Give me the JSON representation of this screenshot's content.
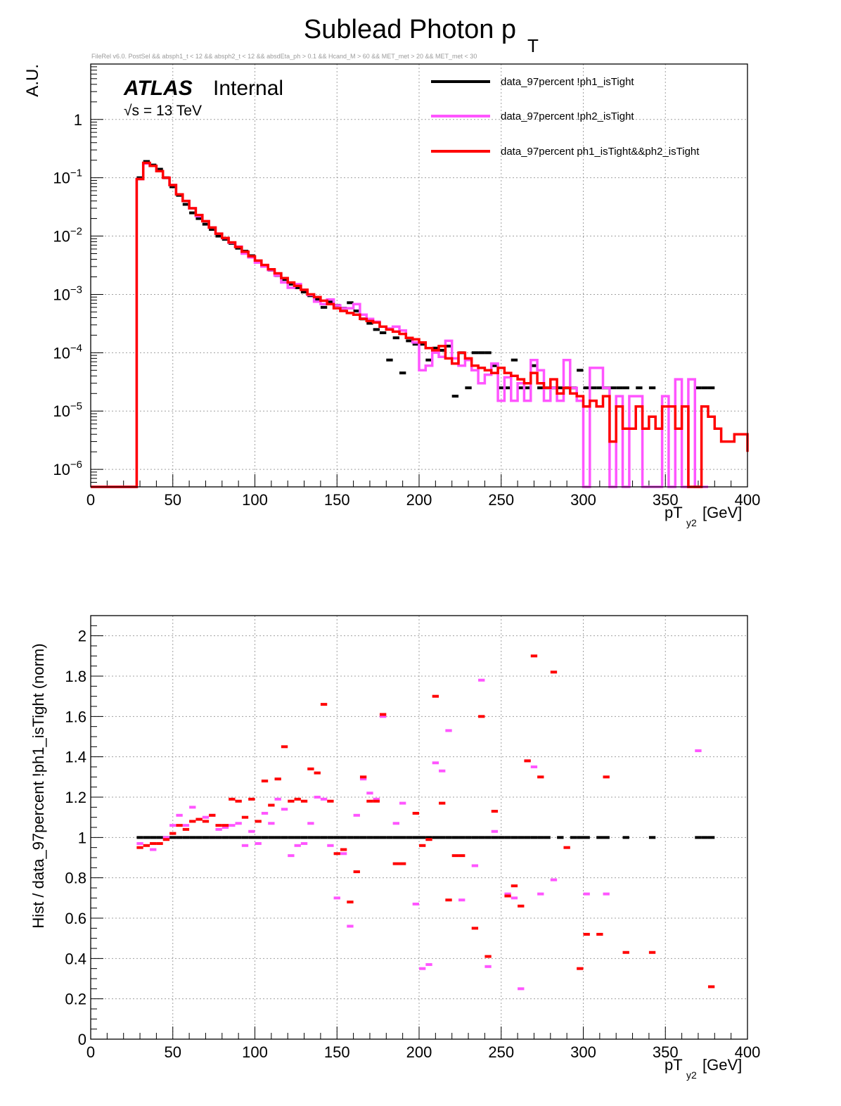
{
  "title": {
    "main": "Sublead Photon p",
    "sub": "T"
  },
  "selection_text": "FileRel v6.0. PostSel &&  absph1_t < 12 && absph2_t < 12 && absdEta_ph > 0.1 && Hcand_M > 60 && MET_met > 20 && MET_met < 30",
  "atlas": {
    "bold": "ATLAS",
    "label": "Internal",
    "energy": "√s = 13 TeV"
  },
  "colors": {
    "data": "#000000",
    "ph2": "#ff55ff",
    "tight": "#ff0000",
    "grid": "#a0a0a0",
    "frame": "#000000"
  },
  "chart_data": [
    {
      "type": "line",
      "subtype": "step-histogram",
      "scale_y": "log",
      "xlim": [
        0,
        400
      ],
      "ylim_log10": [
        -6.3,
        0.95
      ],
      "xlabel": "pT",
      "xlabel_sub": "y2",
      "xlabel_unit": "[GeV]",
      "ylabel": "A.U.",
      "grid": true,
      "legend_position": "top-right",
      "x_ticks": [
        "0",
        "50",
        "100",
        "150",
        "200",
        "250",
        "300",
        "350",
        "400"
      ],
      "y_ticks": [
        {
          "value": 1,
          "base": "1",
          "exp": ""
        },
        {
          "value": 0.1,
          "base": "10",
          "exp": "−1"
        },
        {
          "value": 0.01,
          "base": "10",
          "exp": "−2"
        },
        {
          "value": 0.001,
          "base": "10",
          "exp": "−3"
        },
        {
          "value": 0.0001,
          "base": "10",
          "exp": "−4"
        },
        {
          "value": 1e-05,
          "base": "10",
          "exp": "−5"
        },
        {
          "value": 1e-06,
          "base": "10",
          "exp": "−6"
        }
      ],
      "series": [
        {
          "name": "data_97percent  !ph1_isTight",
          "color": "#000000",
          "style": "markers",
          "x": [
            30,
            34,
            38,
            42,
            46,
            50,
            54,
            58,
            62,
            66,
            70,
            74,
            78,
            82,
            86,
            90,
            94,
            98,
            102,
            106,
            110,
            114,
            118,
            122,
            126,
            130,
            134,
            138,
            142,
            146,
            150,
            154,
            158,
            162,
            166,
            170,
            174,
            178,
            182,
            186,
            190,
            194,
            198,
            202,
            206,
            210,
            214,
            218,
            222,
            226,
            230,
            234,
            238,
            242,
            246,
            250,
            254,
            258,
            262,
            266,
            270,
            274,
            278,
            282,
            286,
            290,
            294,
            298,
            302,
            306,
            310,
            314,
            318,
            322,
            326,
            334,
            342,
            370,
            374,
            378
          ],
          "y": [
            0.1,
            0.19,
            0.165,
            0.14,
            0.1,
            0.07,
            0.05,
            0.035,
            0.025,
            0.02,
            0.016,
            0.013,
            0.01,
            0.0088,
            0.0075,
            0.0062,
            0.0055,
            0.0046,
            0.0037,
            0.0031,
            0.0026,
            0.0021,
            0.0018,
            0.0015,
            0.0013,
            0.0011,
            0.00095,
            0.00082,
            0.0006,
            0.00075,
            0.00065,
            0.00058,
            0.00072,
            0.00052,
            0.00038,
            0.00032,
            0.00025,
            0.00022,
            7.5e-05,
            0.00018,
            4.5e-05,
            0.00016,
            0.00014,
            0.00014,
            7.5e-05,
            0.00012,
            0.00011,
            0.00013,
            1.8e-05,
            0.0001,
            2.5e-05,
            0.0001,
            0.0001,
            0.0001,
            6e-05,
            2.5e-05,
            2.5e-05,
            7.5e-05,
            2.5e-05,
            2.5e-05,
            6e-05,
            2.5e-05,
            2.5e-05,
            2.5e-05,
            2.5e-05,
            2.5e-05,
            2.5e-05,
            5e-05,
            2.5e-05,
            2.5e-05,
            2.5e-05,
            2.5e-05,
            2.5e-05,
            2.5e-05,
            2.5e-05,
            2.5e-05,
            2.5e-05,
            2.5e-05,
            2.5e-05,
            2.5e-05
          ]
        },
        {
          "name": "data_97percent  !ph2_isTight",
          "color": "#ff55ff",
          "style": "step",
          "edges": [
            0,
            28,
            32,
            36,
            40,
            44,
            48,
            52,
            56,
            60,
            64,
            68,
            72,
            76,
            80,
            84,
            88,
            92,
            96,
            100,
            104,
            108,
            112,
            116,
            120,
            124,
            128,
            132,
            136,
            140,
            144,
            148,
            152,
            156,
            160,
            164,
            168,
            172,
            176,
            180,
            184,
            188,
            192,
            196,
            200,
            204,
            208,
            212,
            216,
            220,
            224,
            228,
            232,
            236,
            240,
            244,
            248,
            252,
            256,
            260,
            264,
            268,
            272,
            276,
            280,
            284,
            288,
            292,
            296,
            300,
            304,
            308,
            312,
            316,
            320,
            324,
            328,
            332,
            336,
            340,
            344,
            348,
            352,
            356,
            360,
            364,
            368,
            372,
            376,
            400
          ],
          "y": [
            0,
            0.095,
            0.175,
            0.16,
            0.13,
            0.1,
            0.075,
            0.052,
            0.04,
            0.03,
            0.022,
            0.018,
            0.014,
            0.011,
            0.0092,
            0.0077,
            0.0066,
            0.005,
            0.0043,
            0.0035,
            0.003,
            0.0026,
            0.0021,
            0.0016,
            0.0013,
            0.0015,
            0.0012,
            0.00098,
            0.00075,
            0.00068,
            0.00082,
            0.00065,
            0.00058,
            0.00058,
            0.00068,
            0.00045,
            0.00038,
            0.00034,
            0.00028,
            0.00026,
            0.00028,
            0.00024,
            0.00018,
            0.00015,
            5e-05,
            6e-05,
            0.0001,
            8.5e-05,
            0.00016,
            8e-05,
            6e-05,
            7.5e-05,
            5e-05,
            3e-05,
            4.2e-05,
            6.5e-05,
            1.5e-05,
            3.8e-05,
            1.5e-05,
            3e-05,
            1.5e-05,
            7.5e-05,
            5e-05,
            1.5e-05,
            2.5e-05,
            1.5e-05,
            7.5e-05,
            2.5e-05,
            1.5e-05,
            0,
            5.5e-05,
            5.5e-05,
            2.5e-05,
            0,
            1.8e-05,
            0,
            1.8e-05,
            1.8e-05,
            0,
            0,
            0,
            1.8e-05,
            0,
            3.5e-05,
            0,
            3.5e-05,
            0,
            0
          ]
        },
        {
          "name": "data_97percent  ph1_isTight&&ph2_isTight",
          "color": "#ff0000",
          "style": "step",
          "edges": [
            0,
            28,
            32,
            36,
            40,
            44,
            48,
            52,
            56,
            60,
            64,
            68,
            72,
            76,
            80,
            84,
            88,
            92,
            96,
            100,
            104,
            108,
            112,
            116,
            120,
            124,
            128,
            132,
            136,
            140,
            144,
            148,
            152,
            156,
            160,
            164,
            168,
            172,
            176,
            180,
            184,
            188,
            192,
            196,
            200,
            204,
            208,
            212,
            216,
            220,
            224,
            228,
            232,
            236,
            240,
            244,
            248,
            252,
            256,
            260,
            264,
            268,
            272,
            276,
            280,
            284,
            288,
            292,
            296,
            300,
            304,
            308,
            312,
            316,
            320,
            324,
            328,
            332,
            336,
            340,
            344,
            348,
            352,
            356,
            360,
            364,
            368,
            372,
            376,
            380,
            384,
            388,
            392,
            396,
            400
          ],
          "y": [
            0,
            0.095,
            0.18,
            0.16,
            0.13,
            0.1,
            0.075,
            0.052,
            0.04,
            0.03,
            0.023,
            0.018,
            0.014,
            0.011,
            0.0093,
            0.0078,
            0.0065,
            0.0054,
            0.0045,
            0.0038,
            0.0032,
            0.0027,
            0.0023,
            0.0019,
            0.0016,
            0.0014,
            0.0012,
            0.001,
            0.0009,
            0.00078,
            0.00068,
            0.00058,
            0.00052,
            0.00048,
            0.00045,
            0.00038,
            0.00035,
            0.00033,
            0.00028,
            0.00025,
            0.00023,
            0.00021,
            0.00018,
            0.00017,
            0.00015,
            0.00012,
            0.00011,
            0.00013,
            8e-05,
            6.5e-05,
            0.0001,
            8e-05,
            6e-05,
            5.5e-05,
            5e-05,
            4.5e-05,
            5.5e-05,
            4.5e-05,
            4e-05,
            3.5e-05,
            3e-05,
            4.5e-05,
            3e-05,
            2.5e-05,
            3.5e-05,
            2e-05,
            2.5e-05,
            2e-05,
            1.8e-05,
            1.2e-05,
            1.5e-05,
            1.2e-05,
            1.8e-05,
            3e-06,
            1.2e-05,
            5e-06,
            5e-06,
            1.2e-05,
            5e-06,
            8e-06,
            5e-06,
            1.2e-05,
            1.2e-05,
            5e-06,
            1.2e-05,
            0,
            0,
            1.2e-05,
            8e-06,
            5e-06,
            3e-06,
            3e-06,
            4e-06,
            4e-06,
            2e-06
          ]
        }
      ]
    },
    {
      "type": "scatter",
      "xlim": [
        0,
        400
      ],
      "ylim": [
        0,
        2.1
      ],
      "xlabel": "pT",
      "xlabel_sub": "y2",
      "xlabel_unit": "[GeV]",
      "ylabel": "Hist / data_97percent  !ph1_isTight (norm)",
      "grid": true,
      "x_ticks": [
        "0",
        "50",
        "100",
        "150",
        "200",
        "250",
        "300",
        "350",
        "400"
      ],
      "y_ticks": [
        "0",
        "0.2",
        "0.4",
        "0.6",
        "0.8",
        "1",
        "1.2",
        "1.4",
        "1.6",
        "1.8",
        "2"
      ],
      "series": [
        {
          "name": "data_97percent  !ph1_isTight",
          "color": "#000000",
          "x": [
            30,
            34,
            38,
            42,
            46,
            50,
            54,
            58,
            62,
            66,
            70,
            74,
            78,
            82,
            86,
            90,
            94,
            98,
            102,
            106,
            110,
            114,
            118,
            122,
            126,
            130,
            134,
            138,
            142,
            146,
            150,
            154,
            158,
            162,
            166,
            170,
            174,
            178,
            182,
            186,
            190,
            194,
            198,
            202,
            206,
            210,
            214,
            218,
            222,
            226,
            230,
            234,
            238,
            242,
            246,
            250,
            254,
            258,
            262,
            266,
            270,
            274,
            278,
            286,
            294,
            298,
            302,
            310,
            314,
            326,
            342,
            370,
            374,
            378
          ],
          "y": [
            1,
            1,
            1,
            1,
            1,
            1,
            1,
            1,
            1,
            1,
            1,
            1,
            1,
            1,
            1,
            1,
            1,
            1,
            1,
            1,
            1,
            1,
            1,
            1,
            1,
            1,
            1,
            1,
            1,
            1,
            1,
            1,
            1,
            1,
            1,
            1,
            1,
            1,
            1,
            1,
            1,
            1,
            1,
            1,
            1,
            1,
            1,
            1,
            1,
            1,
            1,
            1,
            1,
            1,
            1,
            1,
            1,
            1,
            1,
            1,
            1,
            1,
            1,
            1,
            1,
            1,
            1,
            1,
            1,
            1,
            1,
            1,
            1,
            1
          ]
        },
        {
          "name": "data_97percent  !ph2_isTight",
          "color": "#ff55ff",
          "x": [
            30,
            38,
            46,
            50,
            54,
            58,
            62,
            66,
            70,
            74,
            78,
            82,
            86,
            90,
            94,
            98,
            102,
            106,
            110,
            114,
            118,
            122,
            126,
            130,
            134,
            138,
            142,
            146,
            150,
            154,
            158,
            162,
            166,
            170,
            174,
            178,
            186,
            190,
            198,
            202,
            206,
            210,
            214,
            218,
            226,
            234,
            238,
            242,
            246,
            254,
            258,
            262,
            266,
            270,
            274,
            282,
            302,
            314,
            370
          ],
          "y": [
            0.97,
            0.94,
            1.0,
            1.06,
            1.11,
            1.06,
            1.15,
            1.09,
            1.1,
            1.11,
            1.04,
            1.05,
            1.06,
            1.07,
            0.96,
            1.03,
            0.97,
            1.12,
            1.07,
            1.19,
            1.14,
            0.91,
            0.96,
            0.97,
            1.07,
            1.2,
            1.19,
            0.96,
            0.7,
            0.92,
            0.56,
            1.11,
            1.29,
            1.22,
            1.19,
            1.6,
            1.07,
            1.17,
            0.67,
            0.35,
            0.37,
            1.37,
            1.33,
            1.53,
            0.69,
            0.86,
            1.78,
            0.36,
            1.03,
            0.72,
            0.7,
            0.25,
            1.38,
            1.35,
            0.72,
            0.79,
            0.72,
            0.72,
            1.43
          ]
        },
        {
          "name": "data_97percent  ph1_isTight&&ph2_isTight",
          "color": "#ff0000",
          "x": [
            30,
            34,
            38,
            42,
            46,
            50,
            54,
            58,
            62,
            66,
            70,
            74,
            78,
            82,
            86,
            90,
            94,
            98,
            102,
            106,
            110,
            114,
            118,
            122,
            126,
            130,
            134,
            138,
            142,
            146,
            150,
            154,
            158,
            162,
            166,
            170,
            174,
            178,
            186,
            190,
            198,
            202,
            206,
            210,
            214,
            218,
            222,
            226,
            234,
            238,
            242,
            246,
            254,
            258,
            262,
            266,
            270,
            274,
            282,
            290,
            298,
            302,
            310,
            314,
            326,
            342,
            378
          ],
          "y": [
            0.95,
            0.96,
            0.97,
            0.97,
            0.99,
            1.02,
            1.06,
            1.04,
            1.08,
            1.09,
            1.08,
            1.11,
            1.06,
            1.06,
            1.19,
            1.18,
            1.1,
            1.19,
            1.08,
            1.28,
            1.16,
            1.29,
            1.45,
            1.18,
            1.19,
            1.18,
            1.34,
            1.32,
            1.66,
            1.18,
            0.92,
            0.94,
            0.68,
            0.83,
            1.3,
            1.18,
            1.18,
            1.61,
            0.87,
            0.87,
            1.12,
            0.96,
            0.99,
            1.7,
            1.17,
            0.69,
            0.91,
            0.91,
            0.55,
            1.6,
            0.41,
            1.13,
            0.71,
            0.76,
            0.66,
            1.38,
            1.9,
            1.3,
            1.82,
            0.95,
            0.35,
            0.52,
            0.52,
            1.3,
            0.43,
            0.43,
            0.26
          ]
        }
      ]
    }
  ]
}
